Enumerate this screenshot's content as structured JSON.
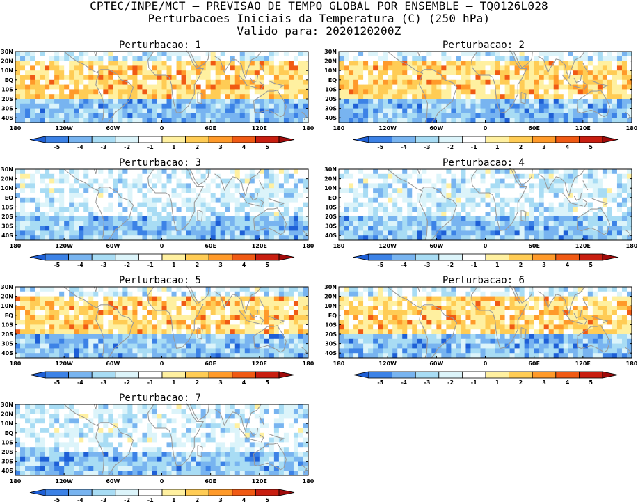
{
  "header": {
    "line1": "CPTEC/INPE/MCT – PREVISAO DE TEMPO GLOBAL POR ENSEMBLE – TQ0126L028",
    "line2": "Perturbacoes Iniciais da Temperatura (C) (250 hPa)",
    "line3": "Valido para: 2020120200Z"
  },
  "map_axes": {
    "lat_labels": [
      "30N",
      "20N",
      "10N",
      "EQ",
      "10S",
      "20S",
      "30S",
      "40S"
    ],
    "lon_labels": [
      "180",
      "120W",
      "60W",
      "0",
      "60E",
      "120E",
      "180"
    ]
  },
  "colorbar": {
    "labels": [
      "-5",
      "-4",
      "-3",
      "-2",
      "-1",
      "1",
      "2",
      "3",
      "4",
      "5"
    ],
    "colors": [
      "#1e5fd6",
      "#3c82e6",
      "#78b4f0",
      "#a8dcf4",
      "#dcf4fa",
      "#ffffff",
      "#fff0a0",
      "#ffcc55",
      "#ff9a2a",
      "#f05a14",
      "#c81e10",
      "#a00a0a"
    ]
  },
  "panels": [
    {
      "title": "Perturbacao: 1",
      "pattern": "warm-tropics"
    },
    {
      "title": "Perturbacao: 2",
      "pattern": "warm-tropics"
    },
    {
      "title": "Perturbacao: 3",
      "pattern": "cool"
    },
    {
      "title": "Perturbacao: 4",
      "pattern": "cool"
    },
    {
      "title": "Perturbacao: 5",
      "pattern": "warm-tropics"
    },
    {
      "title": "Perturbacao: 6",
      "pattern": "warm-tropics"
    },
    {
      "title": "Perturbacao: 7",
      "pattern": "cool"
    }
  ]
}
